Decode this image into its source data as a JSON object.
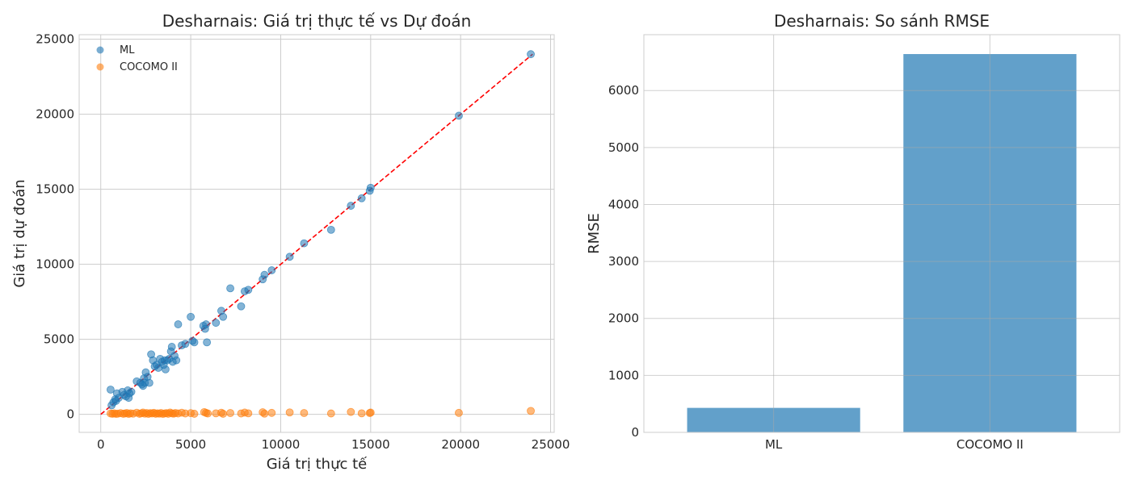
{
  "chart_data": [
    {
      "type": "scatter",
      "title": "Desharnais: Giá trị thực tế vs Dự đoán",
      "xlabel": "Giá trị thực tế",
      "ylabel": "Giá trị dự đoán",
      "xlim": [
        -1200,
        25200
      ],
      "ylim": [
        -1200,
        25300
      ],
      "xticks": [
        0,
        5000,
        10000,
        15000,
        20000,
        25000
      ],
      "yticks": [
        0,
        5000,
        10000,
        15000,
        20000,
        25000
      ],
      "grid": true,
      "legend_position": "top-left",
      "reference_line": {
        "x": [
          0,
          24000
        ],
        "y": [
          0,
          24000
        ],
        "color": "#ff0000",
        "style": "dashed"
      },
      "series": [
        {
          "name": "ML",
          "color": "#1f77b4",
          "points": [
            [
              546,
              1650
            ],
            [
              600,
              600
            ],
            [
              700,
              800
            ],
            [
              800,
              1000
            ],
            [
              850,
              900
            ],
            [
              900,
              1400
            ],
            [
              1000,
              1100
            ],
            [
              1200,
              1500
            ],
            [
              1300,
              1300
            ],
            [
              1400,
              1200
            ],
            [
              1500,
              1600
            ],
            [
              1550,
              1100
            ],
            [
              1600,
              1400
            ],
            [
              1700,
              1500
            ],
            [
              2000,
              2200
            ],
            [
              2200,
              2100
            ],
            [
              2300,
              2000
            ],
            [
              2350,
              1900
            ],
            [
              2400,
              2400
            ],
            [
              2450,
              2100
            ],
            [
              2500,
              2800
            ],
            [
              2600,
              2500
            ],
            [
              2700,
              2100
            ],
            [
              2800,
              4000
            ],
            [
              2900,
              3600
            ],
            [
              3000,
              3200
            ],
            [
              3100,
              3300
            ],
            [
              3200,
              3100
            ],
            [
              3300,
              3700
            ],
            [
              3400,
              3500
            ],
            [
              3500,
              3300
            ],
            [
              3550,
              3600
            ],
            [
              3600,
              3000
            ],
            [
              3700,
              3600
            ],
            [
              3800,
              3700
            ],
            [
              3900,
              4200
            ],
            [
              3950,
              4500
            ],
            [
              4000,
              3500
            ],
            [
              4100,
              3900
            ],
            [
              4200,
              3600
            ],
            [
              4300,
              6000
            ],
            [
              4500,
              4600
            ],
            [
              4700,
              4700
            ],
            [
              5000,
              6500
            ],
            [
              5100,
              4900
            ],
            [
              5200,
              4800
            ],
            [
              5700,
              5900
            ],
            [
              5800,
              5700
            ],
            [
              5850,
              6000
            ],
            [
              5900,
              4800
            ],
            [
              6400,
              6100
            ],
            [
              6700,
              6900
            ],
            [
              6800,
              6500
            ],
            [
              7200,
              8400
            ],
            [
              7800,
              7200
            ],
            [
              8000,
              8200
            ],
            [
              8200,
              8300
            ],
            [
              9000,
              9000
            ],
            [
              9100,
              9300
            ],
            [
              9500,
              9600
            ],
            [
              10500,
              10500
            ],
            [
              11300,
              11400
            ],
            [
              12800,
              12300
            ],
            [
              13900,
              13900
            ],
            [
              14500,
              14400
            ],
            [
              15000,
              15100
            ],
            [
              14950,
              14900
            ],
            [
              19900,
              19900
            ],
            [
              23900,
              24000
            ]
          ]
        },
        {
          "name": "COCOMO II",
          "color": "#ff7f0e",
          "points": [
            [
              546,
              60
            ],
            [
              650,
              40
            ],
            [
              750,
              70
            ],
            [
              850,
              30
            ],
            [
              950,
              50
            ],
            [
              1100,
              80
            ],
            [
              1250,
              40
            ],
            [
              1350,
              60
            ],
            [
              1450,
              90
            ],
            [
              1550,
              30
            ],
            [
              1650,
              70
            ],
            [
              1800,
              50
            ],
            [
              2000,
              110
            ],
            [
              2150,
              40
            ],
            [
              2250,
              70
            ],
            [
              2350,
              120
            ],
            [
              2450,
              50
            ],
            [
              2550,
              90
            ],
            [
              2650,
              30
            ],
            [
              2750,
              80
            ],
            [
              2850,
              60
            ],
            [
              2950,
              100
            ],
            [
              3050,
              40
            ],
            [
              3150,
              70
            ],
            [
              3250,
              50
            ],
            [
              3350,
              90
            ],
            [
              3450,
              30
            ],
            [
              3550,
              60
            ],
            [
              3650,
              80
            ],
            [
              3750,
              40
            ],
            [
              3850,
              120
            ],
            [
              3950,
              70
            ],
            [
              4050,
              50
            ],
            [
              4150,
              90
            ],
            [
              4300,
              60
            ],
            [
              4500,
              110
            ],
            [
              4700,
              60
            ],
            [
              5000,
              80
            ],
            [
              5200,
              40
            ],
            [
              5750,
              150
            ],
            [
              5850,
              100
            ],
            [
              5950,
              60
            ],
            [
              6400,
              70
            ],
            [
              6700,
              110
            ],
            [
              6800,
              40
            ],
            [
              7200,
              90
            ],
            [
              7800,
              60
            ],
            [
              8000,
              120
            ],
            [
              8200,
              70
            ],
            [
              9000,
              140
            ],
            [
              9100,
              50
            ],
            [
              9500,
              100
            ],
            [
              10500,
              130
            ],
            [
              11300,
              90
            ],
            [
              12800,
              60
            ],
            [
              13900,
              160
            ],
            [
              14500,
              70
            ],
            [
              15000,
              120
            ],
            [
              14950,
              90
            ],
            [
              19900,
              100
            ],
            [
              23900,
              230
            ]
          ]
        }
      ]
    },
    {
      "type": "bar",
      "title": "Desharnais: So sánh RMSE",
      "ylabel": "RMSE",
      "xlabel": "",
      "categories": [
        "ML",
        "COCOMO II"
      ],
      "values": [
        430,
        6640
      ],
      "color": "#1f77b4",
      "ylim": [
        0,
        6980
      ],
      "yticks": [
        0,
        1000,
        2000,
        3000,
        4000,
        5000,
        6000
      ],
      "grid": true
    }
  ]
}
